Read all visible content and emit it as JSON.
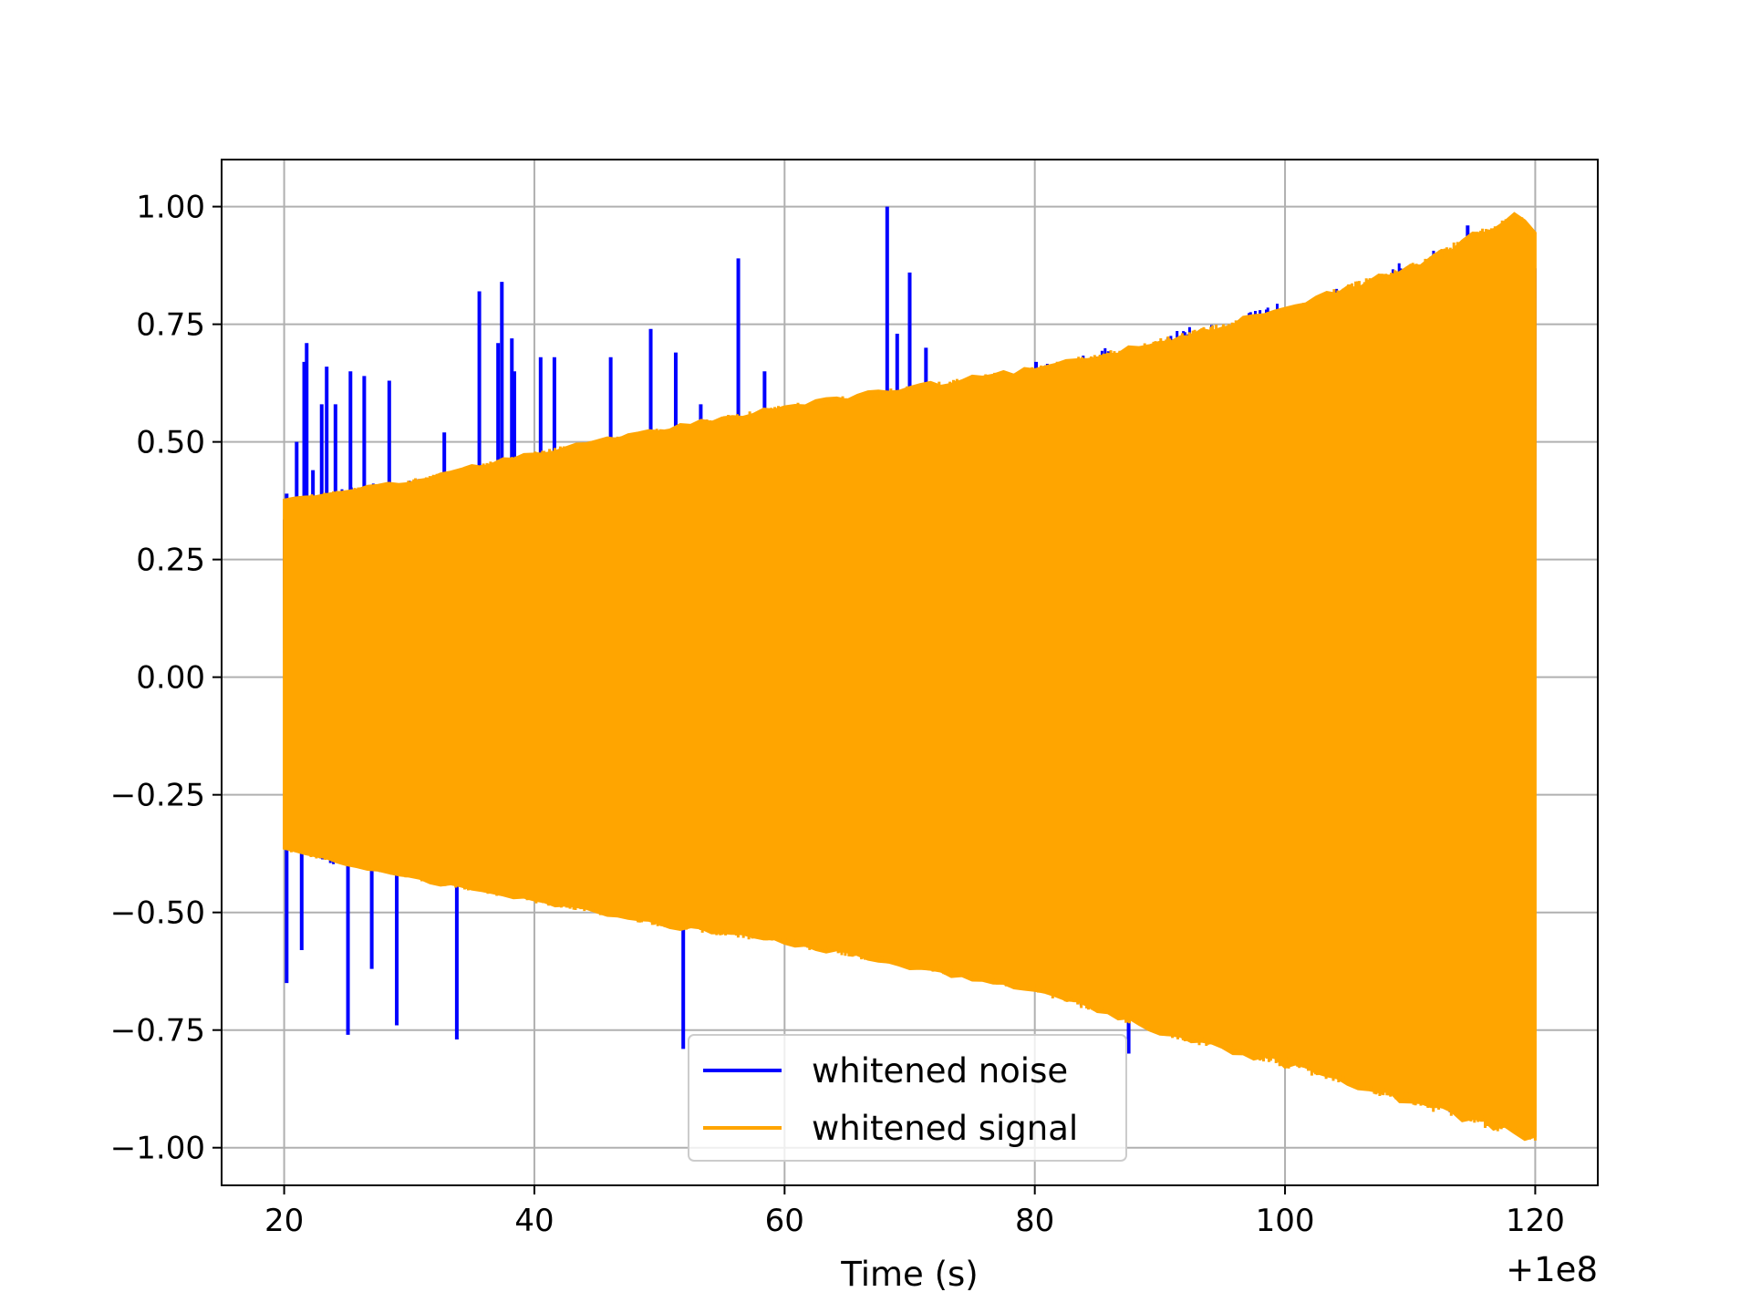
{
  "chart_data": {
    "type": "line",
    "title": "",
    "xlabel": "Time (s)",
    "ylabel": "",
    "x_offset_label": "+1e8",
    "xlim": [
      15,
      125
    ],
    "ylim": [
      -1.08,
      1.1
    ],
    "grid": true,
    "legend_position": "lower-center",
    "x_ticks": [
      {
        "value": 20,
        "label": "20"
      },
      {
        "value": 40,
        "label": "40"
      },
      {
        "value": 60,
        "label": "60"
      },
      {
        "value": 80,
        "label": "80"
      },
      {
        "value": 100,
        "label": "100"
      },
      {
        "value": 120,
        "label": "120"
      }
    ],
    "y_ticks": [
      {
        "value": 1.0,
        "label": "1.00"
      },
      {
        "value": 0.75,
        "label": "0.75"
      },
      {
        "value": 0.5,
        "label": "0.50"
      },
      {
        "value": 0.25,
        "label": "0.25"
      },
      {
        "value": 0.0,
        "label": "0.00"
      },
      {
        "value": -0.25,
        "label": "−0.25"
      },
      {
        "value": -0.5,
        "label": "−0.50"
      },
      {
        "value": -0.75,
        "label": "−0.75"
      },
      {
        "value": -1.0,
        "label": "−1.00"
      }
    ],
    "series": [
      {
        "name": "whitened noise",
        "color": "#0000ff",
        "x_range": [
          20,
          120
        ],
        "upper_envelope": [
          [
            20,
            0.38
          ],
          [
            40,
            0.47
          ],
          [
            60,
            0.55
          ],
          [
            80,
            0.66
          ],
          [
            100,
            0.8
          ],
          [
            120,
            0.98
          ]
        ],
        "lower_envelope": [
          [
            20,
            -0.38
          ],
          [
            40,
            -0.47
          ],
          [
            60,
            -0.55
          ],
          [
            80,
            -0.67
          ],
          [
            100,
            -0.82
          ],
          [
            120,
            -0.98
          ]
        ],
        "spikes": [
          [
            20.2,
            0.39
          ],
          [
            20.2,
            -0.65
          ],
          [
            21.0,
            0.5
          ],
          [
            21.4,
            -0.58
          ],
          [
            21.6,
            0.67
          ],
          [
            21.8,
            0.71
          ],
          [
            22.3,
            0.44
          ],
          [
            23.0,
            0.58
          ],
          [
            23.4,
            0.66
          ],
          [
            24.1,
            0.58
          ],
          [
            25.1,
            -0.76
          ],
          [
            25.3,
            0.65
          ],
          [
            26.4,
            0.64
          ],
          [
            27.0,
            -0.62
          ],
          [
            28.4,
            0.63
          ],
          [
            29.0,
            -0.74
          ],
          [
            32.8,
            0.52
          ],
          [
            33.8,
            -0.77
          ],
          [
            35.6,
            0.82
          ],
          [
            37.1,
            0.71
          ],
          [
            37.4,
            0.84
          ],
          [
            38.2,
            0.72
          ],
          [
            38.4,
            0.65
          ],
          [
            40.5,
            0.68
          ],
          [
            41.6,
            0.68
          ],
          [
            46.1,
            0.68
          ],
          [
            49.3,
            0.74
          ],
          [
            51.3,
            0.69
          ],
          [
            51.9,
            -0.79
          ],
          [
            53.3,
            0.58
          ],
          [
            56.3,
            0.89
          ],
          [
            58.4,
            0.65
          ],
          [
            67.4,
            -0.59
          ],
          [
            68.2,
            1.0
          ],
          [
            69.0,
            0.73
          ],
          [
            70.0,
            0.86
          ],
          [
            71.3,
            0.7
          ],
          [
            80.1,
            0.67
          ],
          [
            87.5,
            -0.8
          ],
          [
            91.6,
            -0.75
          ],
          [
            114.6,
            0.96
          ]
        ]
      },
      {
        "name": "whitened signal",
        "color": "#ffa500",
        "x_range": [
          20,
          120
        ],
        "upper_envelope": [
          [
            20,
            0.38
          ],
          [
            30,
            0.42
          ],
          [
            40,
            0.48
          ],
          [
            50,
            0.53
          ],
          [
            60,
            0.58
          ],
          [
            70,
            0.62
          ],
          [
            80,
            0.66
          ],
          [
            90,
            0.72
          ],
          [
            100,
            0.79
          ],
          [
            110,
            0.88
          ],
          [
            118.5,
            0.99
          ],
          [
            120,
            0.95
          ]
        ],
        "lower_envelope": [
          [
            20,
            -0.37
          ],
          [
            30,
            -0.43
          ],
          [
            40,
            -0.48
          ],
          [
            50,
            -0.53
          ],
          [
            60,
            -0.57
          ],
          [
            70,
            -0.62
          ],
          [
            80,
            -0.67
          ],
          [
            90,
            -0.76
          ],
          [
            100,
            -0.83
          ],
          [
            110,
            -0.91
          ],
          [
            120,
            -0.99
          ]
        ]
      }
    ]
  }
}
